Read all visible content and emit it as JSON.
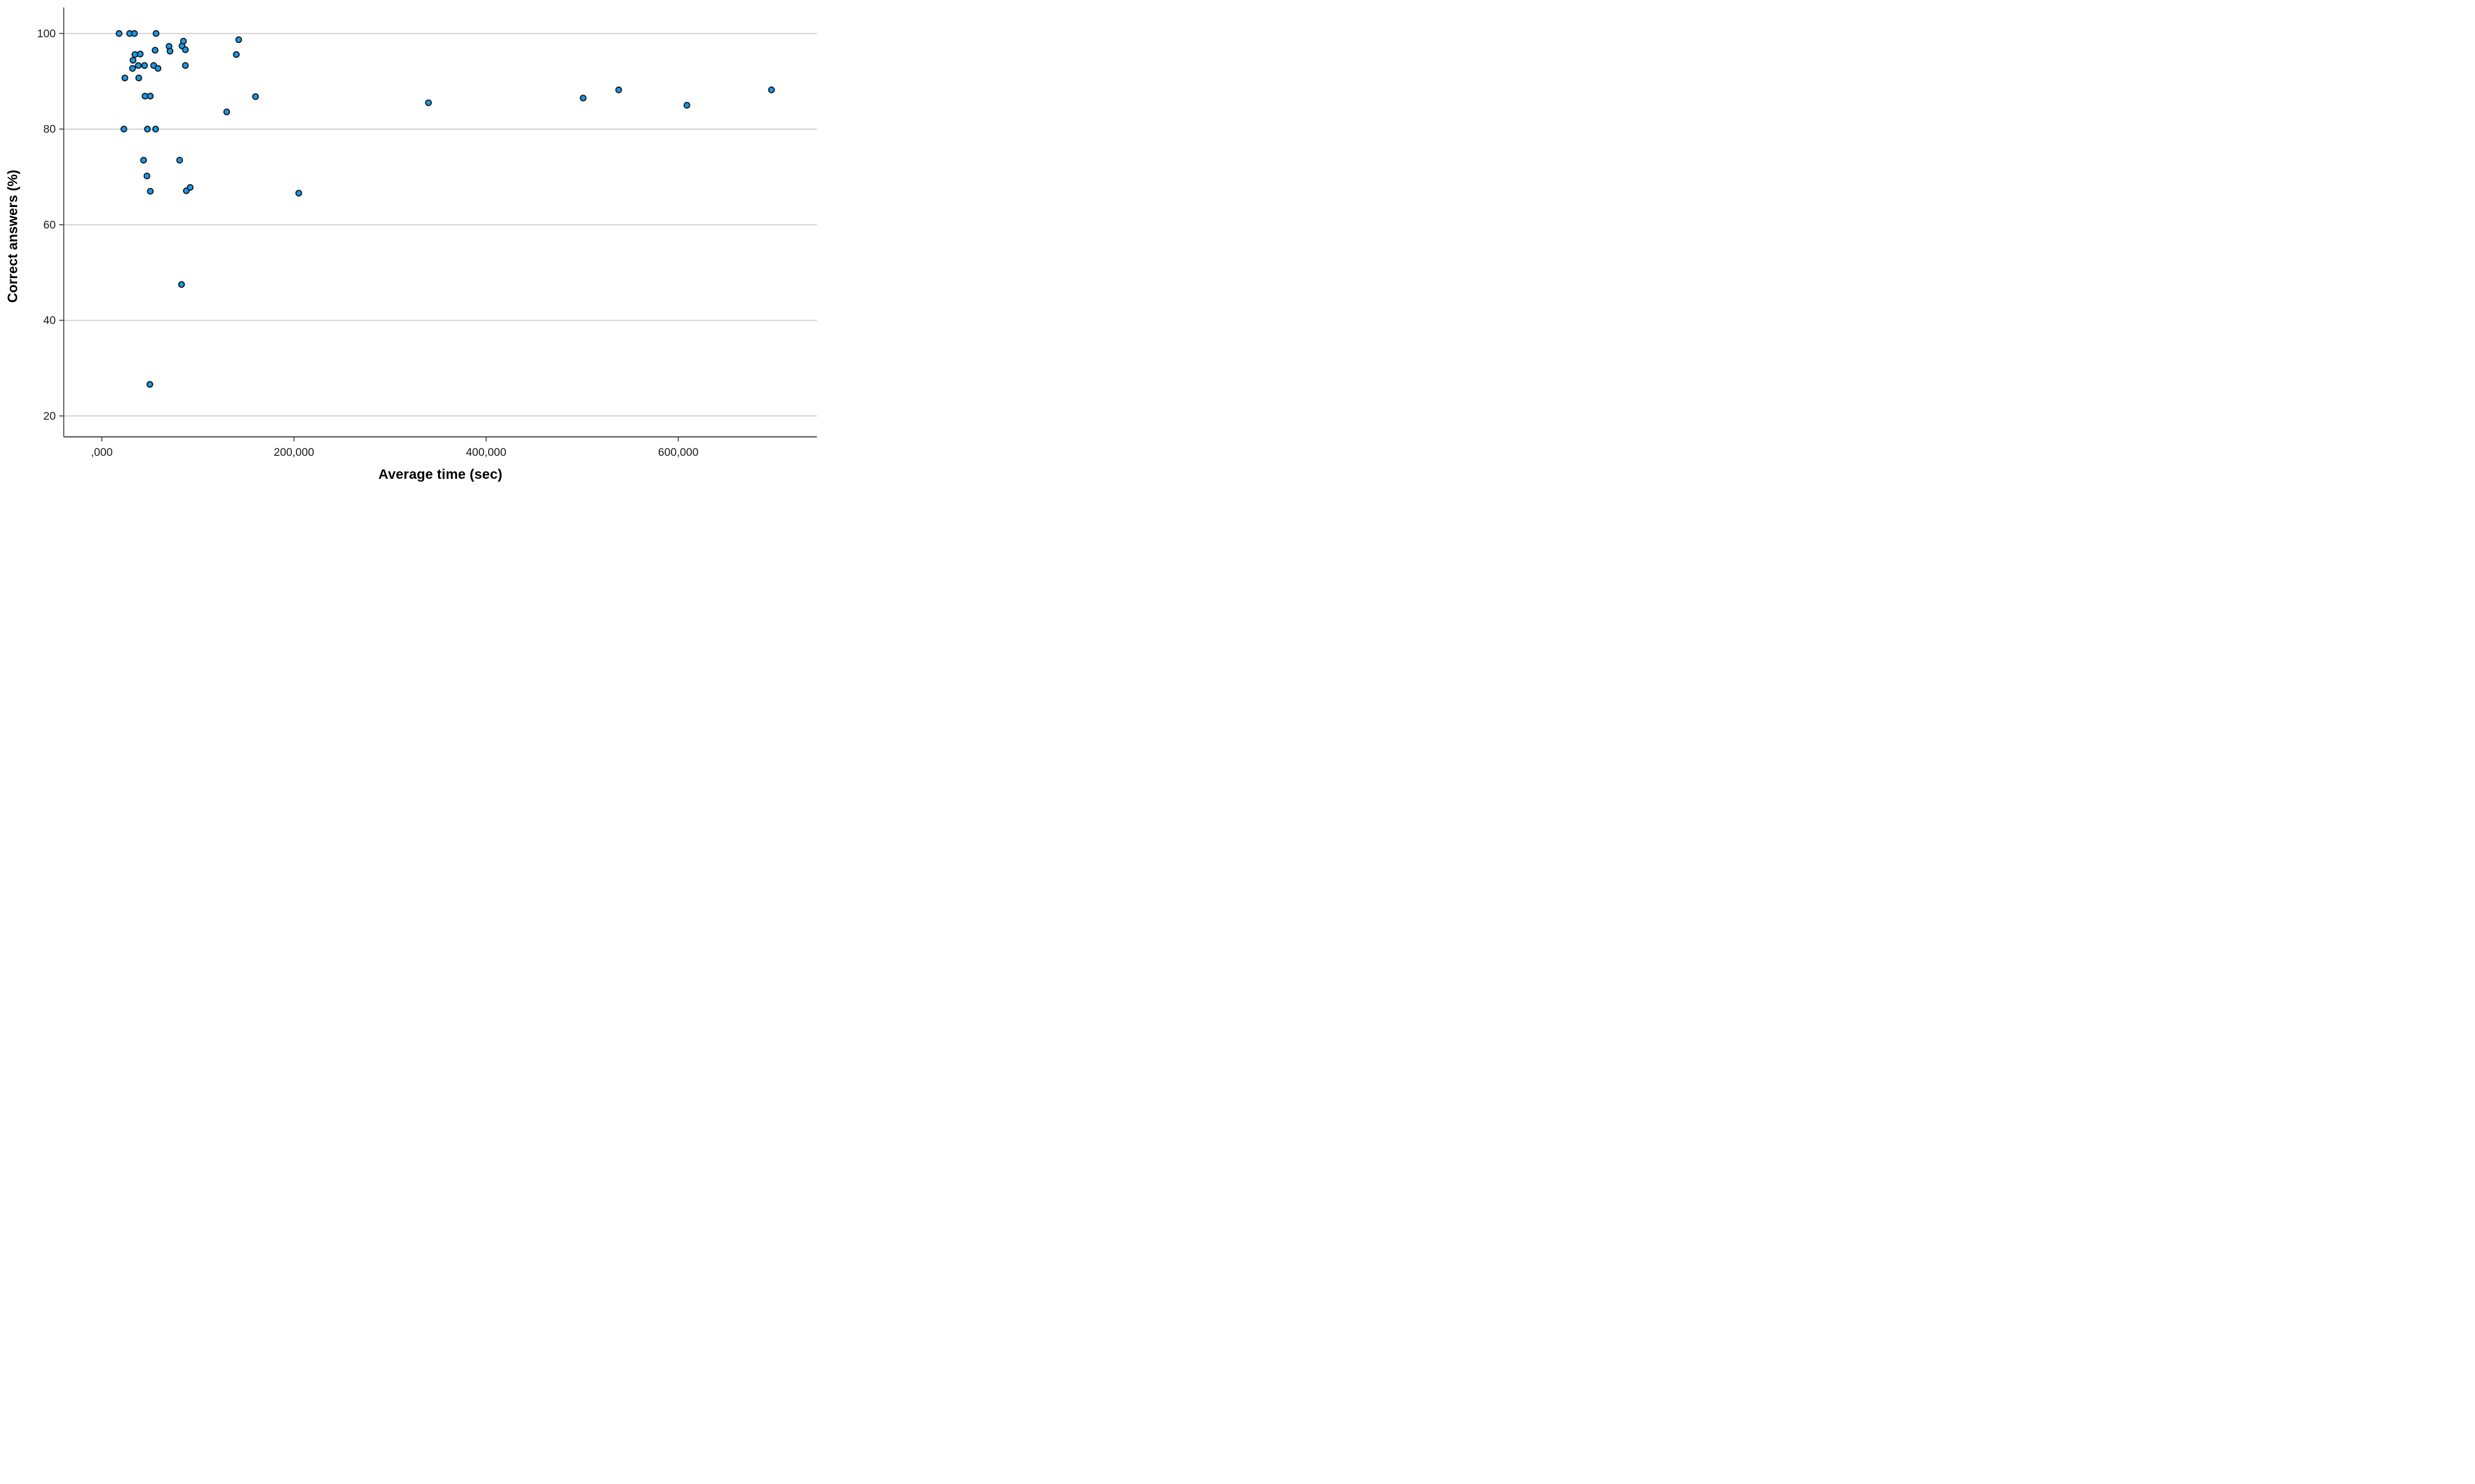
{
  "chart": {
    "title": "",
    "x_axis_title": "Average time (sec)",
    "y_axis_title": "Correct answers (%)",
    "x_tick_labels": [
      ",000",
      "200,000",
      "400,000",
      "600,000"
    ],
    "x_tick_values": [
      0,
      200000,
      400000,
      600000
    ],
    "y_tick_labels": [
      "100",
      "80",
      "60",
      "40",
      "20"
    ],
    "y_tick_values": [
      100,
      80,
      60,
      40,
      20
    ]
  },
  "colors": {
    "marker_fill": "#1b99e6",
    "marker_stroke": "#10181f",
    "gridline": "#c8c8c8",
    "axis_line": "#4d4d4d",
    "tick_text": "#1a1a1a",
    "background": "#ffffff"
  },
  "chart_data": {
    "type": "scatter",
    "title": "",
    "xlabel": "Average time (sec)",
    "ylabel": "Correct answers (%)",
    "xlim": [
      -40000,
      745000
    ],
    "ylim": [
      15.7,
      105.5
    ],
    "grid": "horizontal-only",
    "legend": "none",
    "x_ticks": [
      0,
      200000,
      400000,
      600000
    ],
    "y_ticks": [
      20,
      40,
      60,
      80,
      100
    ],
    "points": [
      [
        18000,
        100
      ],
      [
        29000,
        100
      ],
      [
        34000,
        100
      ],
      [
        56500,
        100
      ],
      [
        24000,
        90.7
      ],
      [
        32000,
        92.7
      ],
      [
        32500,
        94.4
      ],
      [
        34500,
        95.6
      ],
      [
        38000,
        93.3
      ],
      [
        38500,
        90.7
      ],
      [
        40000,
        95.7
      ],
      [
        44500,
        93.3
      ],
      [
        54000,
        93.3
      ],
      [
        55500,
        96.5
      ],
      [
        58500,
        92.7
      ],
      [
        70000,
        97.3
      ],
      [
        71000,
        96.3
      ],
      [
        83500,
        97.4
      ],
      [
        85000,
        98.4
      ],
      [
        87000,
        96.6
      ],
      [
        87000,
        93.3
      ],
      [
        140000,
        95.6
      ],
      [
        142500,
        98.7
      ],
      [
        45000,
        86.9
      ],
      [
        50500,
        86.9
      ],
      [
        160000,
        86.8
      ],
      [
        130000,
        83.6
      ],
      [
        23000,
        80
      ],
      [
        47500,
        80
      ],
      [
        56000,
        80
      ],
      [
        43500,
        73.5
      ],
      [
        81000,
        73.5
      ],
      [
        47000,
        70.2
      ],
      [
        50500,
        67
      ],
      [
        88000,
        67.1
      ],
      [
        92000,
        67.8
      ],
      [
        205000,
        66.6
      ],
      [
        83000,
        47.5
      ],
      [
        50000,
        26.6
      ],
      [
        340000,
        85.5
      ],
      [
        501000,
        86.5
      ],
      [
        538000,
        88.2
      ],
      [
        609000,
        85
      ],
      [
        697000,
        88.2
      ]
    ]
  }
}
